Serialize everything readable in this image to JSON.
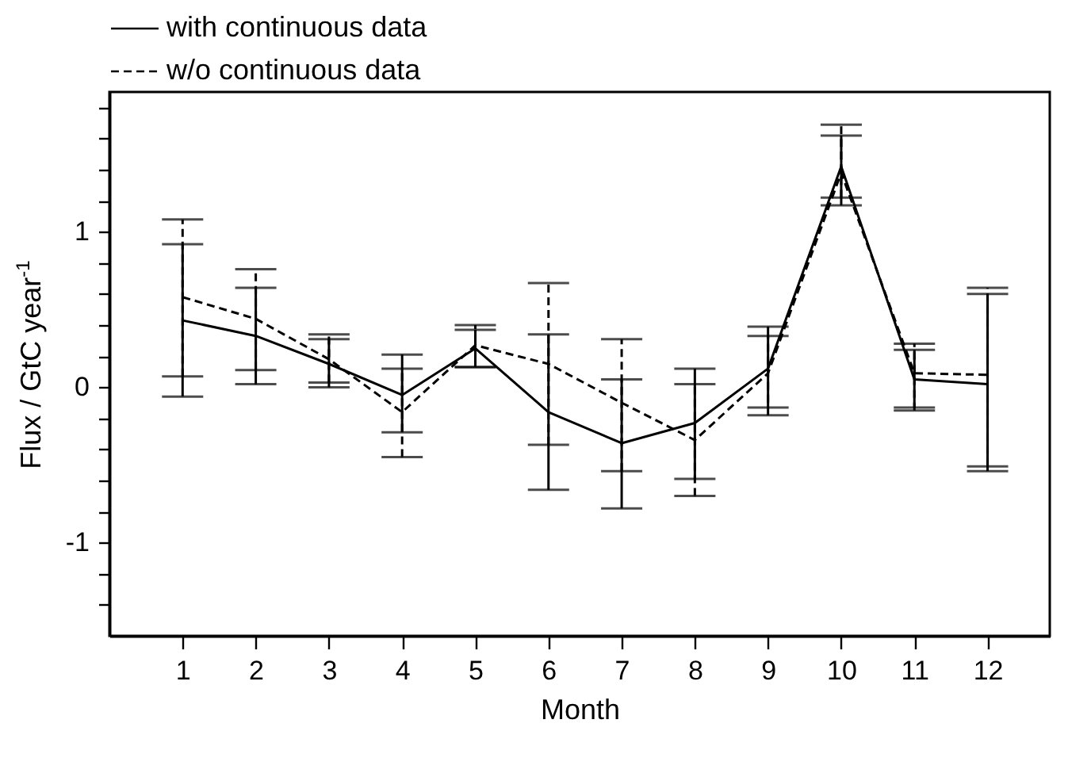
{
  "chart_data": {
    "type": "line",
    "xlabel": "Month",
    "ylabel": "Flux / GtC year$^{-1}$",
    "x": [
      1,
      2,
      3,
      4,
      5,
      6,
      7,
      8,
      9,
      10,
      11,
      12
    ],
    "series": [
      {
        "name": "with continuous data",
        "color": "#000000",
        "line_style": "solid",
        "values": [
          0.43,
          0.33,
          0.15,
          -0.05,
          0.25,
          -0.16,
          -0.36,
          -0.23,
          0.12,
          1.42,
          0.05,
          0.02
        ],
        "errors": [
          [
            -0.06,
            0.92
          ],
          [
            0.02,
            0.64
          ],
          [
            0.0,
            0.31
          ],
          [
            -0.29,
            0.21
          ],
          [
            0.13,
            0.37
          ],
          [
            -0.66,
            0.34
          ],
          [
            -0.78,
            0.05
          ],
          [
            -0.59,
            0.12
          ],
          [
            -0.13,
            0.39
          ],
          [
            1.17,
            1.62
          ],
          [
            -0.13,
            0.24
          ],
          [
            -0.54,
            0.6
          ]
        ]
      },
      {
        "name": "w/o continuous data",
        "color": "#000000",
        "line_style": "dashed",
        "values": [
          0.58,
          0.44,
          0.18,
          -0.16,
          0.27,
          0.15,
          -0.1,
          -0.34,
          0.09,
          1.38,
          0.09,
          0.08
        ],
        "errors": [
          [
            0.07,
            1.08
          ],
          [
            0.11,
            0.76
          ],
          [
            0.03,
            0.34
          ],
          [
            -0.45,
            0.12
          ],
          [
            0.13,
            0.4
          ],
          [
            -0.37,
            0.67
          ],
          [
            -0.54,
            0.31
          ],
          [
            -0.7,
            0.02
          ],
          [
            -0.18,
            0.33
          ],
          [
            1.22,
            1.69
          ],
          [
            -0.15,
            0.28
          ],
          [
            -0.51,
            0.64
          ]
        ]
      }
    ],
    "xlim": [
      0,
      12.85
    ],
    "ylim": [
      -1.6,
      1.9
    ],
    "xticks": [
      1,
      2,
      3,
      4,
      5,
      6,
      7,
      8,
      9,
      10,
      11,
      12
    ],
    "yticks": [
      {
        "value": -1.4,
        "label": null
      },
      {
        "value": -1.2,
        "label": null
      },
      -1,
      {
        "value": -0.8,
        "label": null
      },
      {
        "value": -0.6,
        "label": null
      },
      {
        "value": -0.4,
        "label": null
      },
      {
        "value": -0.2,
        "label": null
      },
      0,
      {
        "value": 0.2,
        "label": null
      },
      {
        "value": 0.4,
        "label": null
      },
      {
        "value": 0.6,
        "label": null
      },
      {
        "value": 0.8,
        "label": null
      },
      1,
      {
        "value": 1.2,
        "label": null
      },
      {
        "value": 1.4,
        "label": null
      },
      {
        "value": 1.6,
        "label": null
      },
      {
        "value": 1.8,
        "label": null
      }
    ],
    "grid": false,
    "legend": "top left",
    "marker": "none"
  }
}
